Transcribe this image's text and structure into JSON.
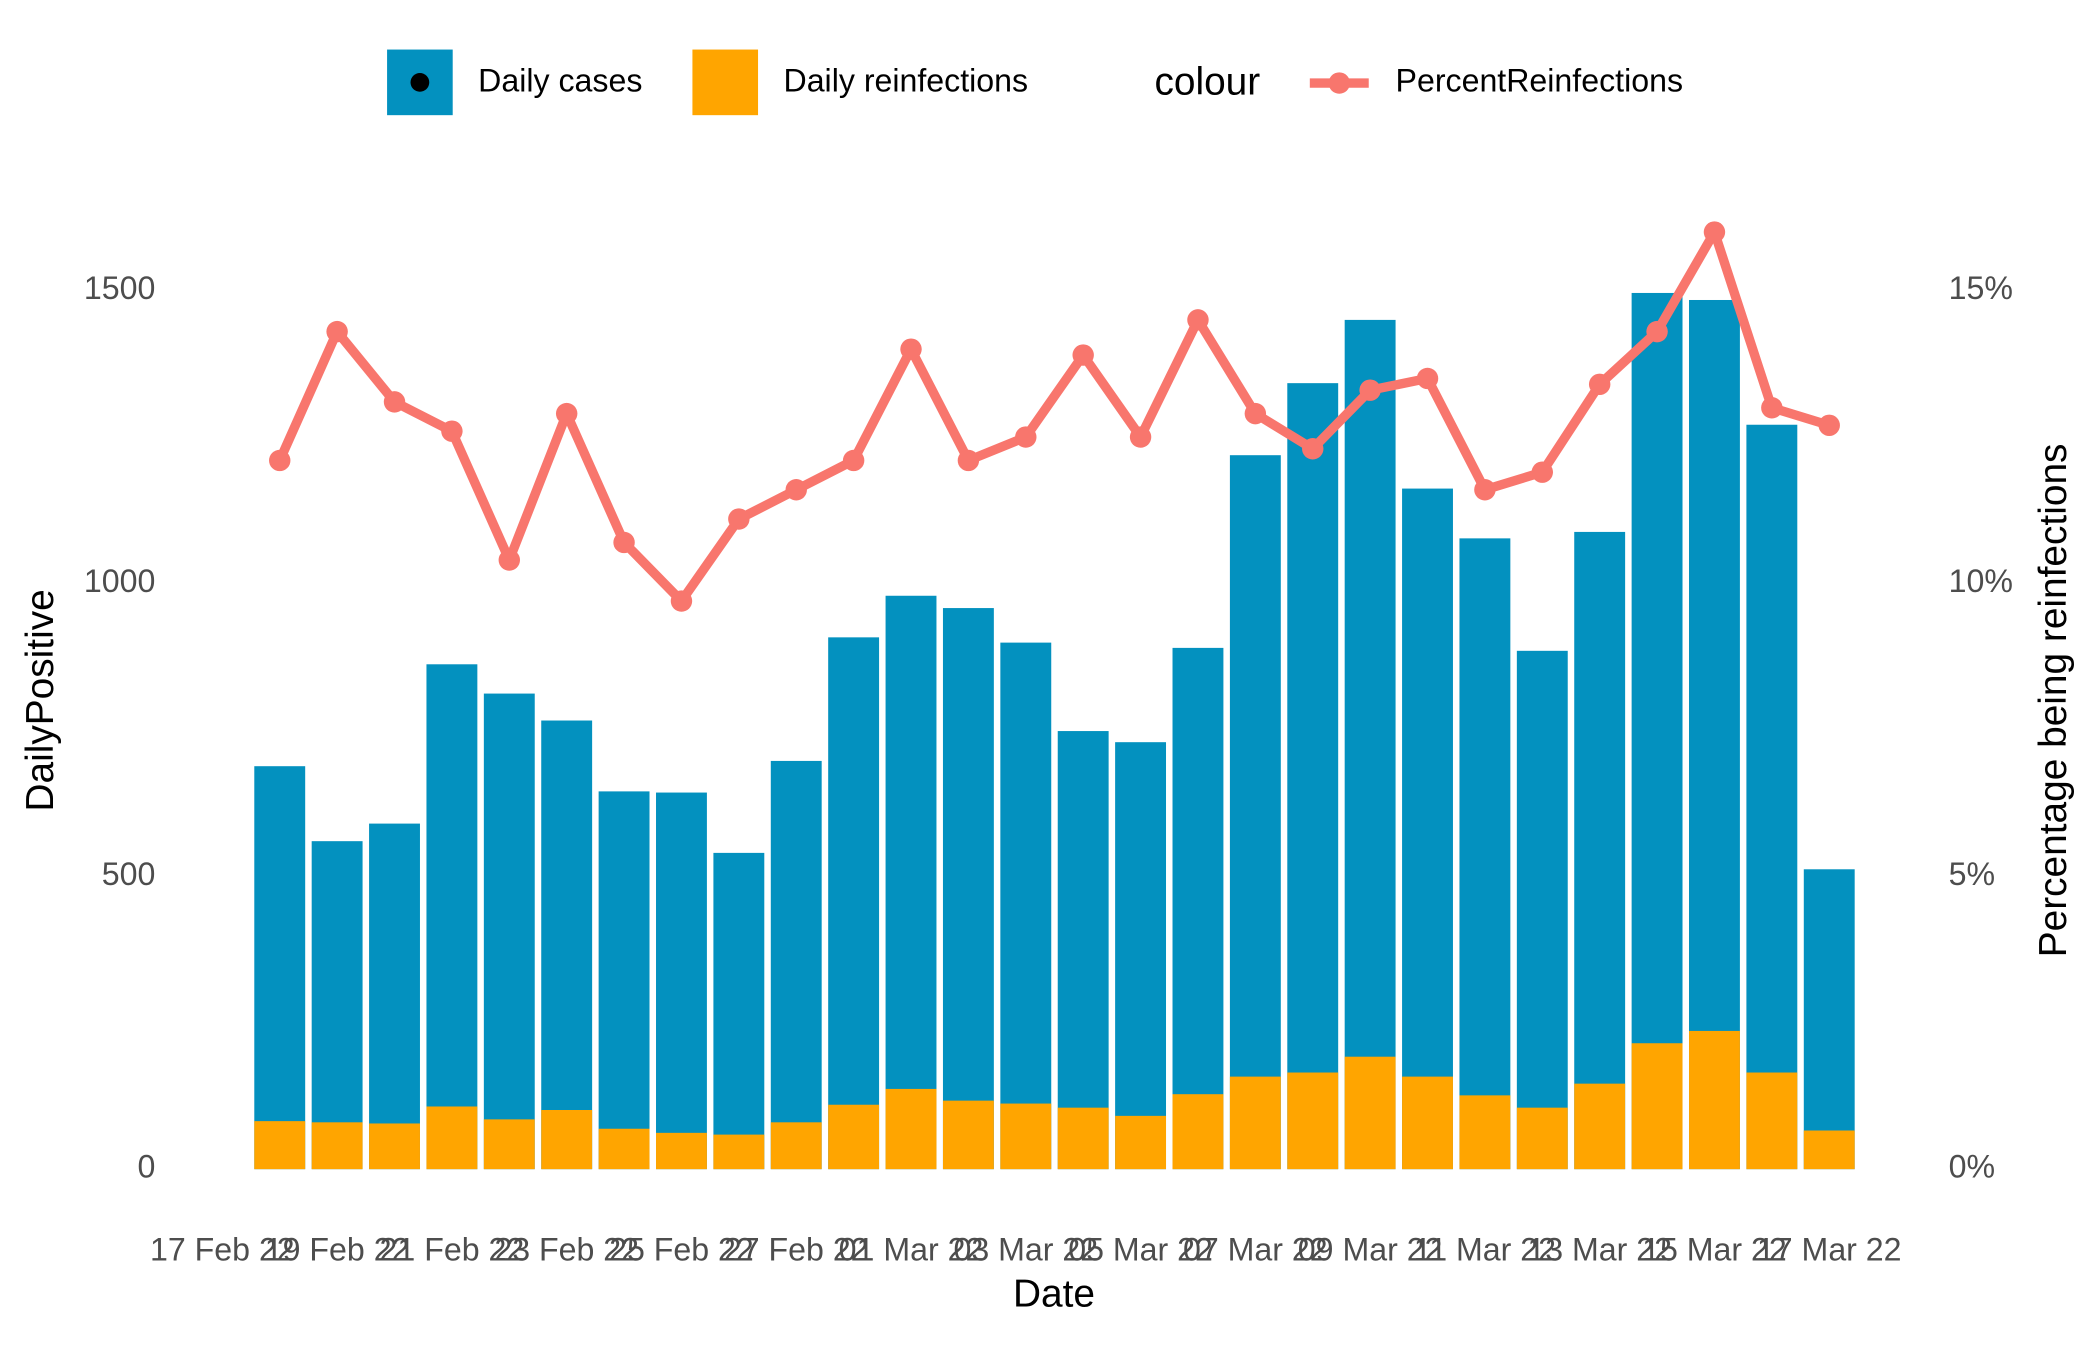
{
  "chart_data": {
    "type": "bar",
    "x_label": "Date",
    "y_label": "DailyPositive",
    "y2_label": "Percentage being reinfections",
    "legend_title": "colour",
    "x": [
      "2022-02-18",
      "2022-02-19",
      "2022-02-20",
      "2022-02-21",
      "2022-02-22",
      "2022-02-23",
      "2022-02-24",
      "2022-02-25",
      "2022-02-26",
      "2022-02-27",
      "2022-02-28",
      "2022-03-01",
      "2022-03-02",
      "2022-03-03",
      "2022-03-04",
      "2022-03-05",
      "2022-03-06",
      "2022-03-07",
      "2022-03-08",
      "2022-03-09",
      "2022-03-10",
      "2022-03-11",
      "2022-03-12",
      "2022-03-13",
      "2022-03-14",
      "2022-03-15",
      "2022-03-16",
      "2022-03-17"
    ],
    "series": [
      {
        "name": "Daily cases",
        "type": "bar",
        "color": "#0391BF",
        "values": [
          688,
          560,
          590,
          862,
          812,
          766,
          645,
          643,
          540,
          697,
          908,
          979,
          958,
          899,
          748,
          729,
          890,
          1219,
          1342,
          1450,
          1162,
          1077,
          885,
          1088,
          1496,
          1484,
          1271,
          512
        ]
      },
      {
        "name": "Daily reinfections",
        "type": "bar",
        "color": "#FFA500",
        "values": [
          82,
          80,
          78,
          107,
          85,
          101,
          69,
          62,
          59,
          80,
          110,
          137,
          117,
          112,
          105,
          91,
          128,
          158,
          165,
          192,
          158,
          126,
          105,
          146,
          215,
          236,
          165,
          66
        ]
      },
      {
        "name": "PercentReinfections",
        "type": "line",
        "axis": "y2",
        "color": "#F8766D",
        "values": [
          12.1,
          14.3,
          13.1,
          12.6,
          10.4,
          12.9,
          10.7,
          9.7,
          11.1,
          11.6,
          12.1,
          14.0,
          12.1,
          12.5,
          13.9,
          12.5,
          14.5,
          12.9,
          12.3,
          13.3,
          13.5,
          11.6,
          11.9,
          13.4,
          14.3,
          16.0,
          13.0,
          12.7
        ]
      }
    ],
    "xlim": [
      "2022-02-17",
      "2022-03-18"
    ],
    "xticks": [
      {
        "value": "2022-02-17",
        "label": "17 Feb 22"
      },
      {
        "value": "2022-02-19",
        "label": "19 Feb 22"
      },
      {
        "value": "2022-02-21",
        "label": "21 Feb 22"
      },
      {
        "value": "2022-02-23",
        "label": "23 Feb 22"
      },
      {
        "value": "2022-02-25",
        "label": "25 Feb 22"
      },
      {
        "value": "2022-02-27",
        "label": "27 Feb 22"
      },
      {
        "value": "2022-03-01",
        "label": "01 Mar 22"
      },
      {
        "value": "2022-03-03",
        "label": "03 Mar 22"
      },
      {
        "value": "2022-03-05",
        "label": "05 Mar 22"
      },
      {
        "value": "2022-03-07",
        "label": "07 Mar 22"
      },
      {
        "value": "2022-03-09",
        "label": "09 Mar 22"
      },
      {
        "value": "2022-03-11",
        "label": "11 Mar 22"
      },
      {
        "value": "2022-03-13",
        "label": "13 Mar 22"
      },
      {
        "value": "2022-03-15",
        "label": "15 Mar 22"
      },
      {
        "value": "2022-03-17",
        "label": "17 Mar 22"
      }
    ],
    "ylim": [
      0,
      1500
    ],
    "yticks": [
      0,
      500,
      1000,
      1500
    ],
    "y2lim": [
      0,
      15
    ],
    "y2ticks": [
      {
        "value": 0,
        "label": "0%"
      },
      {
        "value": 5,
        "label": "5%"
      },
      {
        "value": 10,
        "label": "10%"
      },
      {
        "value": 15,
        "label": "15%"
      }
    ],
    "legend_position": "top",
    "grid": false
  }
}
